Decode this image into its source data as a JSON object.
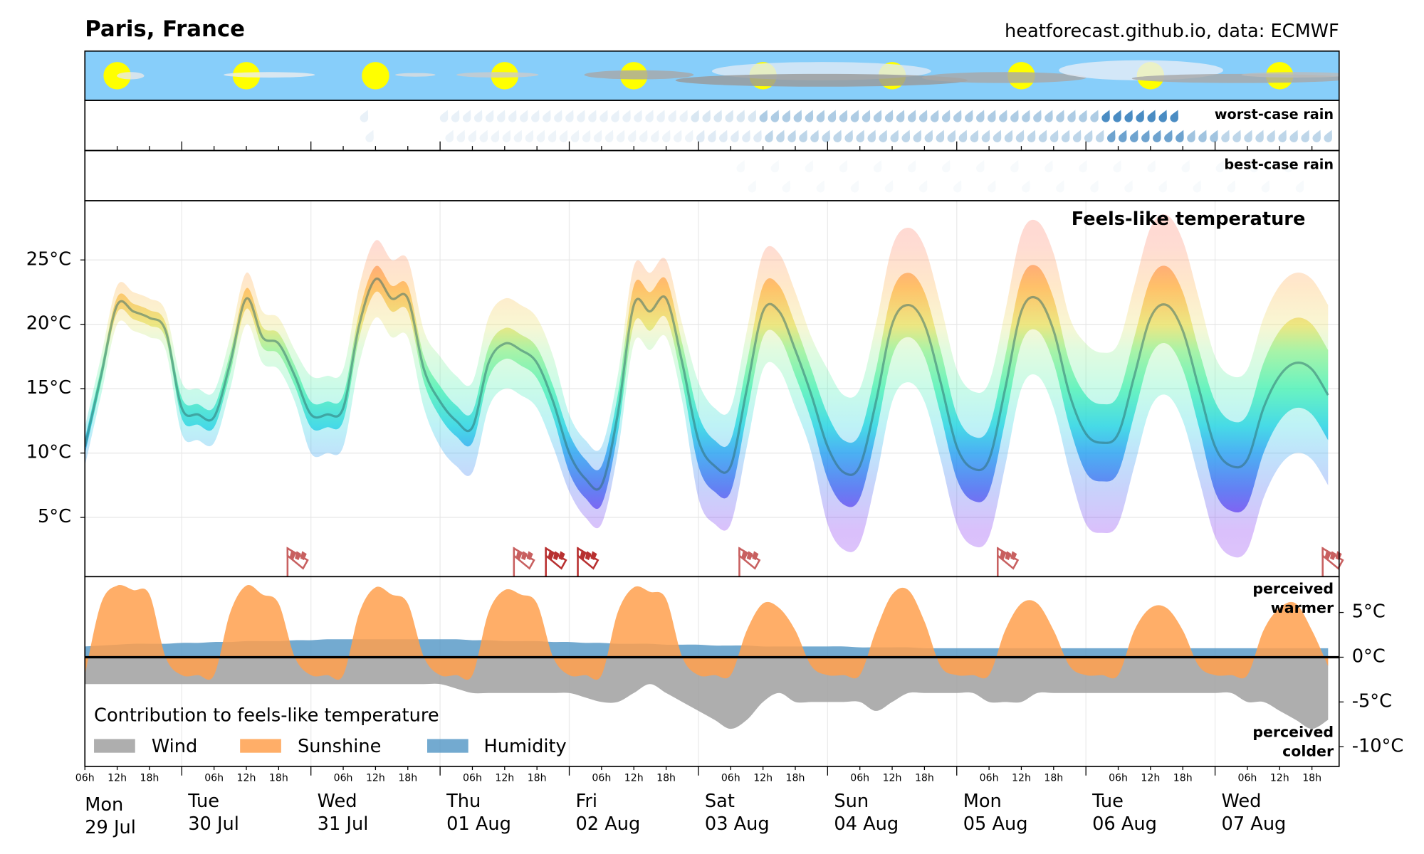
{
  "header": {
    "title": "Paris, France",
    "source": "heatforecast.github.io, data: ECMWF"
  },
  "rain_panels": {
    "worst": "worst-case rain",
    "best": "best-case rain"
  },
  "time_axis": {
    "hour_labels": [
      "06h",
      "12h",
      "18h"
    ],
    "days": [
      {
        "weekday": "Mon",
        "date": "29 Jul"
      },
      {
        "weekday": "Tue",
        "date": "30 Jul"
      },
      {
        "weekday": "Wed",
        "date": "31 Jul"
      },
      {
        "weekday": "Thu",
        "date": "01 Aug"
      },
      {
        "weekday": "Fri",
        "date": "02 Aug"
      },
      {
        "weekday": "Sat",
        "date": "03 Aug"
      },
      {
        "weekday": "Sun",
        "date": "04 Aug"
      },
      {
        "weekday": "Mon",
        "date": "05 Aug"
      },
      {
        "weekday": "Tue",
        "date": "06 Aug"
      },
      {
        "weekday": "Wed",
        "date": "07 Aug"
      }
    ]
  },
  "chart_data": [
    {
      "type": "band",
      "title": "Feels-like temperature",
      "ylim": [
        0.4,
        29.6
      ],
      "yticks": [
        {
          "value": 5,
          "label": "5°C"
        },
        {
          "value": 10,
          "label": "10°C"
        },
        {
          "value": 15,
          "label": "15°C"
        },
        {
          "value": 20,
          "label": "20°C"
        },
        {
          "value": 25,
          "label": "25°C"
        }
      ],
      "grid": true,
      "values": [
        10.5,
        16,
        21.5,
        21,
        20.5,
        19.5,
        13.5,
        13,
        12.8,
        17,
        22,
        19,
        18.5,
        16,
        13,
        13,
        13.5,
        20,
        23.5,
        22,
        22,
        16.5,
        14,
        12.5,
        12,
        17,
        18.5,
        18,
        17,
        14,
        10,
        8,
        7.5,
        13,
        21.5,
        21,
        22,
        17,
        11,
        9,
        9,
        15,
        21,
        21,
        18,
        14.5,
        10.5,
        8.5,
        9,
        14,
        20,
        21.5,
        20,
        15.5,
        10.5,
        8.8,
        9.5,
        15,
        21,
        22,
        19.5,
        14.5,
        11.5,
        10.8,
        11.5,
        16,
        20.5,
        21.5,
        19.5,
        15,
        10.5,
        9,
        9.5,
        13.5,
        16,
        17,
        16.5,
        14.5
      ],
      "bands": [
        {
          "low": [
            9,
            14.5,
            20,
            19.5,
            19,
            18,
            11.5,
            11,
            10.8,
            15,
            20,
            17,
            16.5,
            14,
            10,
            10,
            10.5,
            17,
            20.5,
            19,
            19,
            13.5,
            10.5,
            9,
            8.5,
            13.5,
            15,
            14.5,
            13.5,
            10.5,
            7,
            5,
            4.5,
            10,
            18.5,
            18,
            19,
            14,
            6.5,
            4.5,
            4.5,
            10.5,
            16.5,
            16.5,
            13.5,
            10,
            4.5,
            2.5,
            3,
            8,
            14,
            15.5,
            14,
            9.5,
            4.5,
            2.8,
            3.5,
            9,
            15,
            16,
            13.5,
            8.5,
            4.5,
            3.8,
            4.5,
            9,
            13.5,
            14.5,
            12.5,
            8,
            3.5,
            2,
            2.5,
            6.5,
            9,
            10,
            9.5,
            7.5
          ],
          "high": [
            12,
            17.5,
            23,
            22.5,
            22,
            21,
            15.5,
            15,
            14.8,
            19,
            24,
            21,
            20.5,
            18,
            16,
            16,
            16.5,
            23,
            26.5,
            25,
            25,
            19.5,
            17.5,
            16,
            15.5,
            20.5,
            22,
            21.5,
            20.5,
            17.5,
            13,
            11,
            10.5,
            16,
            24.5,
            24,
            25,
            20,
            15.5,
            13.5,
            13.5,
            19.5,
            25.5,
            25.5,
            22.5,
            19,
            16.5,
            14.5,
            15,
            20,
            26,
            27.5,
            26,
            21.5,
            16.5,
            14.8,
            15.5,
            21,
            27,
            28,
            25.5,
            20.5,
            18.5,
            17.8,
            18.5,
            23,
            27.5,
            28.5,
            26.5,
            22,
            17.5,
            16,
            16.5,
            20.5,
            23,
            24,
            23.5,
            21.5
          ]
        },
        {
          "low": [
            9.9,
            15.4,
            20.9,
            20.4,
            19.9,
            18.9,
            12.7,
            12.2,
            12,
            16.2,
            21.2,
            18.2,
            17.7,
            15.2,
            12,
            12,
            12.5,
            19,
            22.5,
            21,
            21,
            15.5,
            12.8,
            11.3,
            10.8,
            15.8,
            17.3,
            16.8,
            15.8,
            12.8,
            8.5,
            6.5,
            6,
            11.5,
            20,
            19.5,
            20.5,
            15.5,
            9,
            7,
            7,
            13,
            19,
            19,
            16,
            12.5,
            8,
            6,
            6.5,
            11.5,
            17.5,
            19,
            17.5,
            13,
            8,
            6.3,
            7,
            12.5,
            18.5,
            19.5,
            17,
            12,
            8.5,
            7.8,
            8.5,
            13,
            17.5,
            18.5,
            16.5,
            12,
            7,
            5.5,
            6,
            10,
            12.5,
            13.5,
            13,
            11
          ],
          "high": [
            11.1,
            16.6,
            22.1,
            21.6,
            21.1,
            20.1,
            14.3,
            13.8,
            13.6,
            17.8,
            22.8,
            19.8,
            19.3,
            16.8,
            14,
            14,
            14.5,
            21,
            24.5,
            23,
            23,
            17.5,
            15.2,
            13.7,
            13.2,
            18.2,
            19.7,
            19.2,
            18.2,
            15.2,
            11.5,
            9.5,
            9,
            14.5,
            23,
            22.5,
            23.5,
            18.5,
            13,
            11,
            11,
            17,
            23,
            23,
            20,
            16.5,
            13,
            11,
            11.5,
            16.5,
            22.5,
            24,
            22.5,
            18,
            13,
            11.3,
            12,
            17.5,
            23.5,
            24.5,
            22,
            17,
            14.5,
            13.8,
            14.5,
            19,
            23.5,
            24.5,
            22.5,
            18,
            14,
            12.5,
            13,
            17,
            19.5,
            20.5,
            20,
            18
          ]
        }
      ]
    },
    {
      "type": "area",
      "legend_title": "Contribution to feels-like temperature",
      "warmer_label": [
        "perceived",
        "warmer"
      ],
      "colder_label": [
        "perceived",
        "colder"
      ],
      "ylim": [
        -12.2,
        9
      ],
      "yticks": [
        {
          "value": 5,
          "label": "5°C"
        },
        {
          "value": 0,
          "label": "0°C"
        },
        {
          "value": -5,
          "label": "-5°C"
        },
        {
          "value": -10,
          "label": "-10°C"
        }
      ],
      "series": [
        {
          "name": "Wind",
          "color": "#a0a0a0",
          "values": [
            -3,
            -3,
            -3,
            -3,
            -3,
            -3,
            -3,
            -3,
            -3,
            -3,
            -3,
            -3,
            -3,
            -3,
            -3,
            -3,
            -3,
            -3,
            -3,
            -3,
            -3,
            -3,
            -3,
            -3.5,
            -4,
            -4,
            -4,
            -4,
            -4,
            -4,
            -4,
            -4.5,
            -5,
            -5,
            -4,
            -3,
            -4,
            -5,
            -6,
            -7,
            -8,
            -7,
            -5,
            -4,
            -5,
            -5,
            -5,
            -5,
            -5,
            -6,
            -5,
            -4,
            -4,
            -4,
            -4,
            -4,
            -5,
            -5,
            -5,
            -4,
            -4,
            -4,
            -4,
            -4,
            -4,
            -4,
            -4,
            -4,
            -4,
            -4,
            -4,
            -4,
            -5,
            -5,
            -6,
            -7,
            -8,
            -7
          ]
        },
        {
          "name": "Sunshine",
          "color": "#ffa04d",
          "values": [
            -2,
            6,
            8,
            7.5,
            7,
            0,
            -2,
            -2,
            -2,
            5,
            8,
            7,
            6,
            0,
            -2,
            -2,
            -2,
            5,
            7.8,
            7,
            6,
            0,
            -2,
            -2,
            -2,
            5,
            7.5,
            7,
            6,
            0,
            -2,
            -2,
            -2,
            5,
            7.8,
            7.3,
            6.5,
            0,
            -2,
            -2,
            -2,
            3,
            6,
            5.5,
            3,
            -1,
            -2,
            -2,
            -2,
            3,
            7,
            7.5,
            4,
            -1,
            -2,
            -2,
            -2,
            3,
            6,
            6,
            3,
            -1,
            -2,
            -2,
            -2,
            3,
            5.5,
            5.5,
            3,
            -1,
            -2,
            -2,
            -2,
            3,
            5.5,
            6,
            3,
            -1
          ]
        },
        {
          "name": "Humidity",
          "color": "#5b9bc8",
          "values": [
            1.2,
            1.3,
            1.4,
            1.5,
            1.5,
            1.5,
            1.6,
            1.6,
            1.7,
            1.7,
            1.8,
            1.8,
            1.8,
            1.9,
            1.9,
            2,
            2,
            2,
            2,
            2,
            2,
            2,
            2,
            2,
            1.9,
            1.9,
            1.8,
            1.8,
            1.8,
            1.7,
            1.7,
            1.6,
            1.6,
            1.5,
            1.5,
            1.5,
            1.4,
            1.4,
            1.4,
            1.3,
            1.3,
            1.3,
            1.2,
            1.2,
            1.2,
            1.2,
            1.2,
            1.2,
            1.1,
            1.1,
            1.1,
            1.1,
            1,
            1,
            1,
            1,
            1,
            1,
            1,
            1,
            1,
            1,
            1,
            1,
            1,
            1,
            1,
            1,
            1,
            1,
            1,
            1,
            1,
            1,
            1,
            1,
            1,
            1
          ]
        }
      ]
    }
  ]
}
